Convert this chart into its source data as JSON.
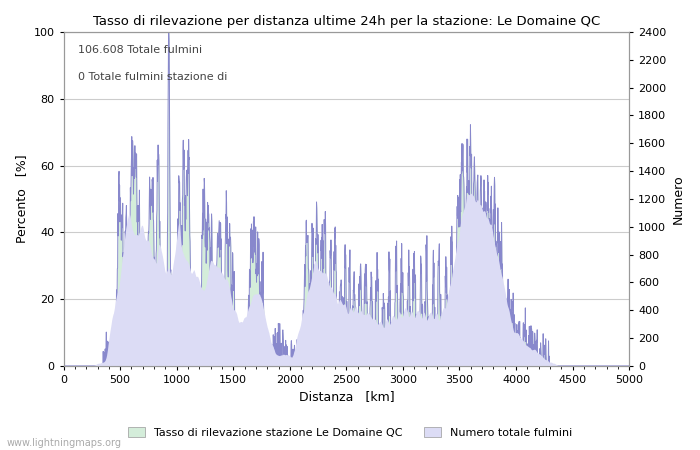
{
  "title": "Tasso di rilevazione per distanza ultime 24h per la stazione: Le Domaine QC",
  "xlabel": "Distanza   [km]",
  "ylabel_left": "Percento   [%]",
  "ylabel_right": "Numero",
  "xlim": [
    0,
    5000
  ],
  "ylim_left": [
    0,
    100
  ],
  "ylim_right": [
    0,
    2400
  ],
  "yticks_left": [
    0,
    20,
    40,
    60,
    80,
    100
  ],
  "yticks_right": [
    0,
    200,
    400,
    600,
    800,
    1000,
    1200,
    1400,
    1600,
    1800,
    2000,
    2200,
    2400
  ],
  "xticks": [
    0,
    500,
    1000,
    1500,
    2000,
    2500,
    3000,
    3500,
    4000,
    4500,
    5000
  ],
  "annotation_line1": "106.608 Totale fulmini",
  "annotation_line2": "0 Totale fulmini stazione di",
  "legend_label1": "Tasso di rilevazione stazione Le Domaine QC",
  "legend_label2": "Numero totale fulmini",
  "fill_color1": "#d4edda",
  "fill_color2": "#dcdcf5",
  "line_color": "#8888cc",
  "watermark": "www.lightningmaps.org",
  "bg_color": "#ffffff",
  "grid_color": "#cccccc"
}
